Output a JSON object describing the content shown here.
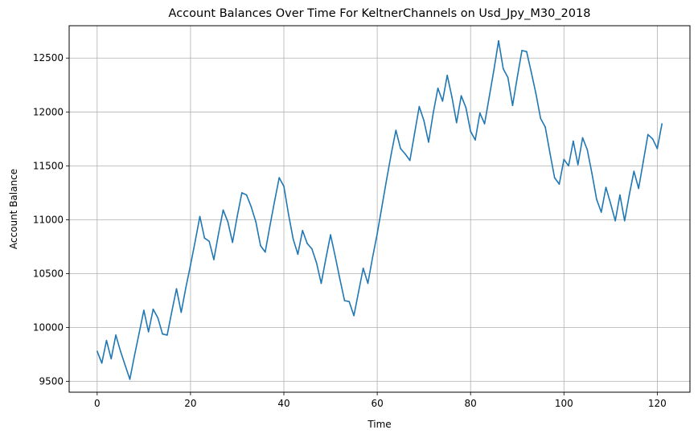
{
  "chart_data": {
    "type": "line",
    "title": "Account Balances Over Time For KeltnerChannels on Usd_Jpy_M30_2018",
    "xlabel": "Time",
    "ylabel": "Account Balance",
    "xlim": [
      -6,
      127
    ],
    "ylim": [
      9400,
      12800
    ],
    "grid": true,
    "line_color": "#1f77b4",
    "x_ticks": [
      0,
      20,
      40,
      60,
      80,
      100,
      120
    ],
    "y_ticks": [
      9500,
      10000,
      10500,
      11000,
      11500,
      12000,
      12500
    ],
    "series": [
      {
        "values": [
          9780,
          9670,
          9880,
          9710,
          9930,
          9780,
          9650,
          9520,
          9740,
          9950,
          10160,
          9960,
          10170,
          10090,
          9940,
          9930,
          10150,
          10360,
          10140,
          10370,
          10580,
          10800,
          11030,
          10830,
          10800,
          10630,
          10870,
          11090,
          10980,
          10790,
          11030,
          11250,
          11230,
          11120,
          10980,
          10760,
          10700,
          10940,
          11170,
          11390,
          11310,
          11050,
          10820,
          10680,
          10900,
          10780,
          10730,
          10600,
          10410,
          10640,
          10860,
          10660,
          10450,
          10250,
          10240,
          10110,
          10330,
          10550,
          10410,
          10650,
          10870,
          11120,
          11370,
          11610,
          11830,
          11660,
          11610,
          11550,
          11800,
          12050,
          11920,
          11720,
          11990,
          12220,
          12100,
          12340,
          12140,
          11900,
          12150,
          12040,
          11820,
          11740,
          11990,
          11890,
          12140,
          12390,
          12660,
          12400,
          12320,
          12060,
          12320,
          12570,
          12560,
          12370,
          12170,
          11940,
          11860,
          11620,
          11390,
          11330,
          11560,
          11500,
          11730,
          11510,
          11760,
          11650,
          11430,
          11190,
          11070,
          11300,
          11150,
          10990,
          11230,
          10990,
          11230,
          11450,
          11290,
          11540,
          11790,
          11750,
          11660,
          11890
        ]
      }
    ]
  }
}
